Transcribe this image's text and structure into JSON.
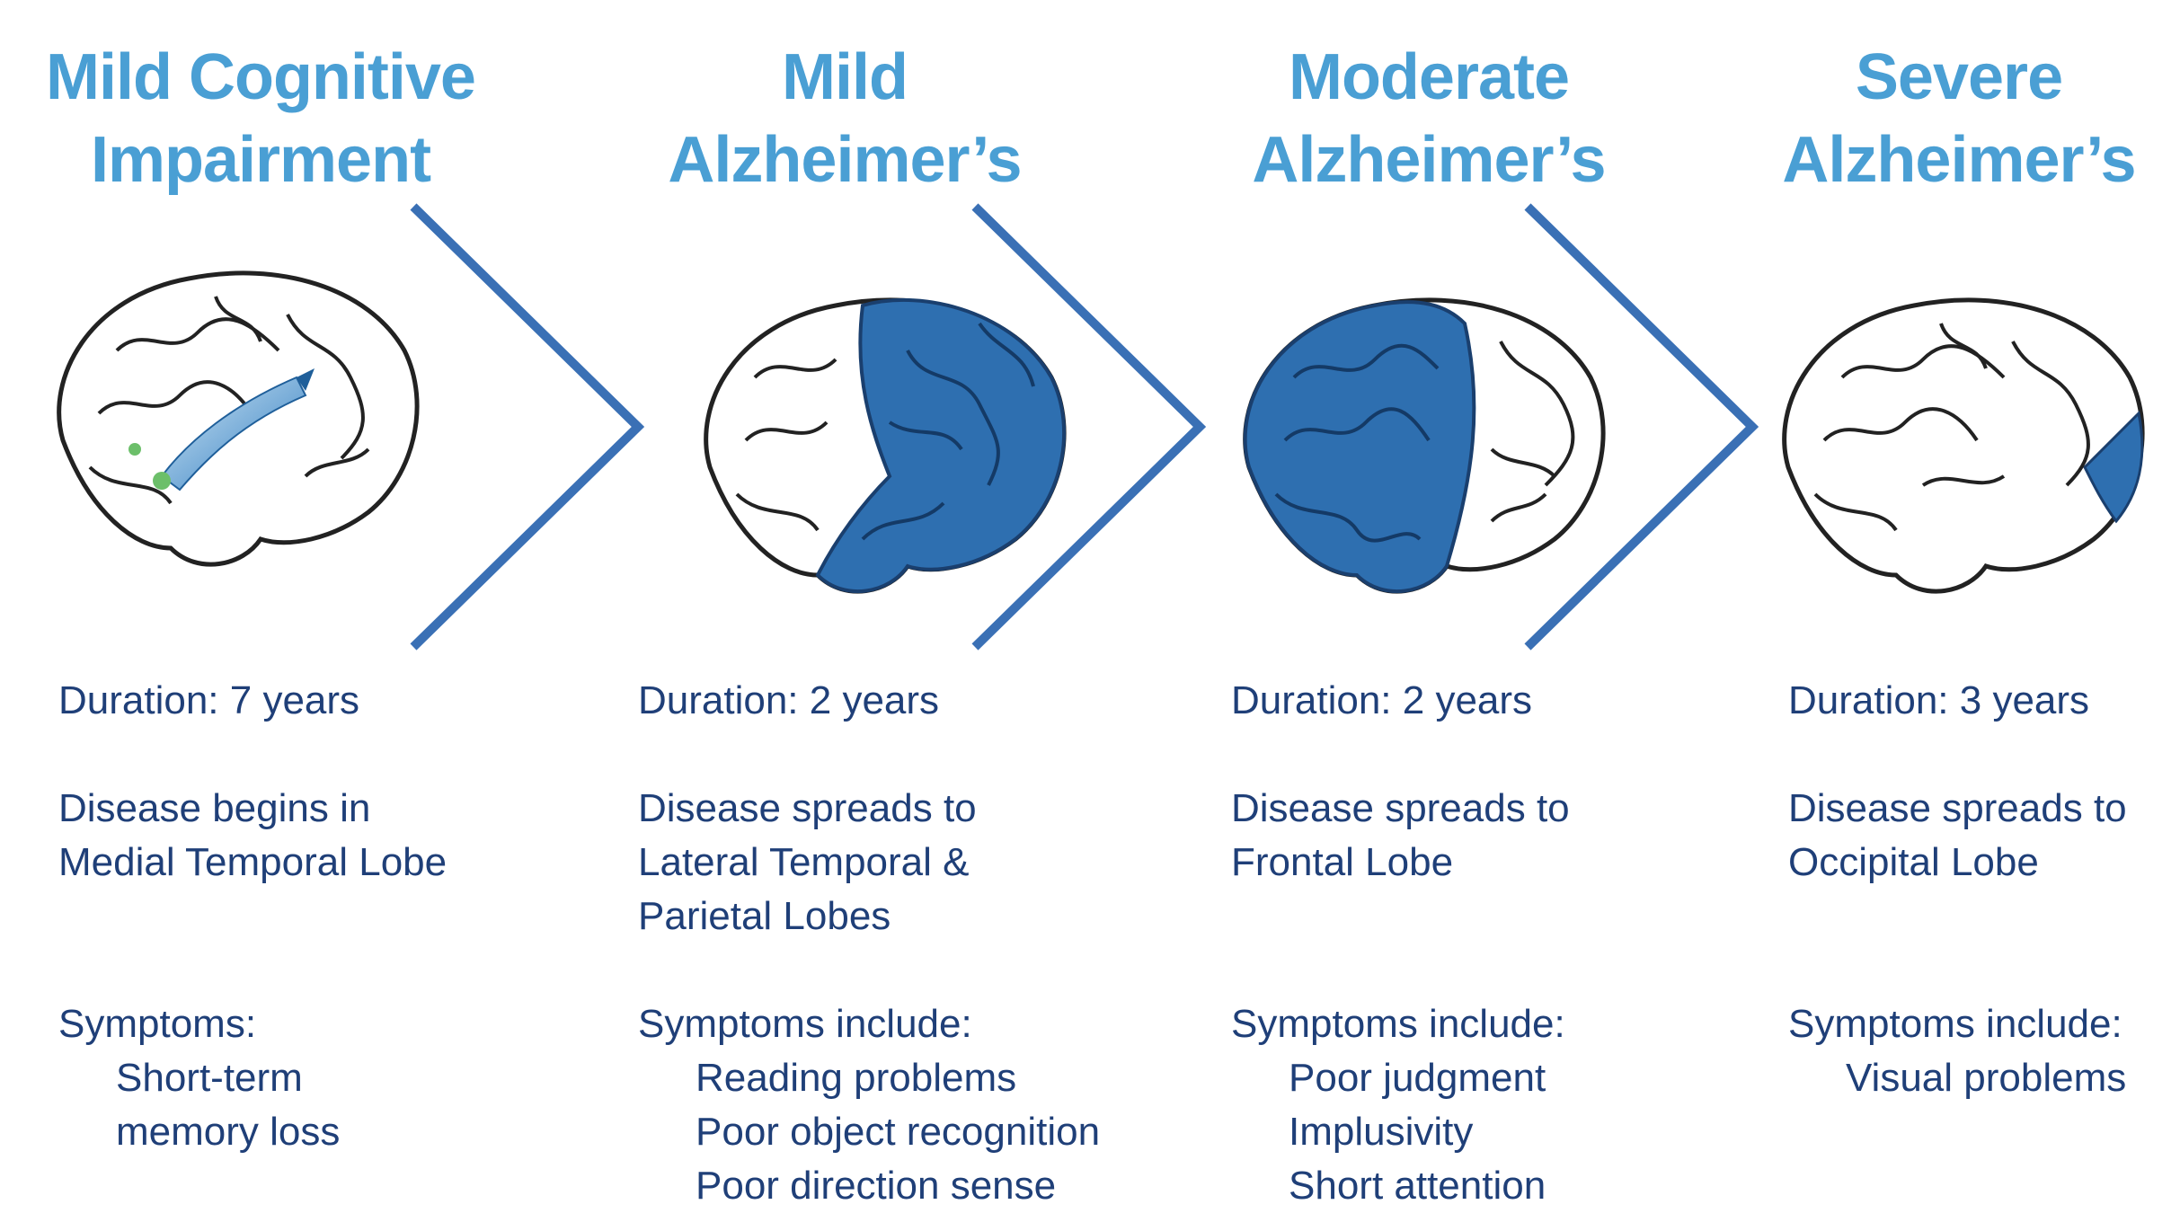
{
  "stages": [
    {
      "title": [
        "Mild Cognitive",
        "Impairment"
      ],
      "duration": "Duration: 7 years",
      "disease": [
        "Disease begins in",
        "Medial Temporal Lobe"
      ],
      "symptoms_label": "Symptoms:",
      "symptoms": [
        "Short-term",
        "memory loss"
      ]
    },
    {
      "title": [
        "Mild",
        "Alzheimer’s"
      ],
      "duration": "Duration: 2 years",
      "disease": [
        "Disease spreads to",
        "Lateral Temporal &",
        "Parietal Lobes"
      ],
      "symptoms_label": "Symptoms include:",
      "symptoms": [
        "Reading problems",
        "Poor object recognition",
        "Poor direction sense"
      ]
    },
    {
      "title": [
        "Moderate",
        "Alzheimer’s"
      ],
      "duration": "Duration: 2 years",
      "disease": [
        "Disease spreads to",
        "Frontal Lobe"
      ],
      "symptoms_label": "Symptoms include:",
      "symptoms": [
        "Poor judgment",
        "Implusivity",
        "Short attention"
      ]
    },
    {
      "title": [
        "Severe",
        "Alzheimer’s"
      ],
      "duration": "Duration: 3 years",
      "disease": [
        "Disease spreads to",
        "Occipital Lobe"
      ],
      "symptoms_label": "Symptoms include:",
      "symptoms": [
        "Visual problems"
      ]
    }
  ],
  "colors": {
    "title": "#4a9fd4",
    "text": "#1f3f78",
    "affected_region": "#2e6fb0",
    "chevron": "#3a70b5"
  }
}
